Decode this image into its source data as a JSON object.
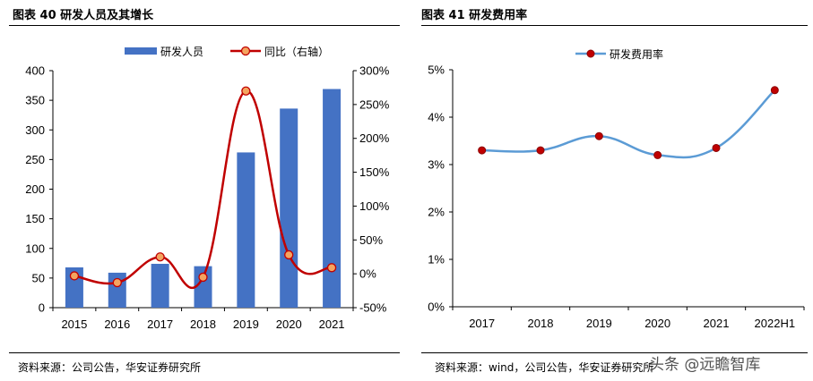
{
  "chart_data": [
    {
      "type": "bar",
      "title": "图表 40 研发人员及其增长",
      "categories": [
        "2015",
        "2016",
        "2017",
        "2018",
        "2019",
        "2020",
        "2021"
      ],
      "series": [
        {
          "name": "研发人员",
          "type": "bar",
          "axis": "left",
          "color": "#4472C4",
          "values": [
            68,
            59,
            74,
            70,
            262,
            336,
            369
          ]
        },
        {
          "name": "同比（右轴）",
          "type": "line",
          "axis": "right",
          "color": "#C00000",
          "marker_fill": "#F4A460",
          "values": [
            -3,
            -13,
            25,
            -5,
            270,
            28,
            9
          ]
        }
      ],
      "yleft": {
        "min": 0,
        "max": 400,
        "step": 50,
        "ticks": [
          "0",
          "50",
          "100",
          "150",
          "200",
          "250",
          "300",
          "350",
          "400"
        ]
      },
      "yright": {
        "min": -50,
        "max": 300,
        "step": 50,
        "ticks": [
          "-50%",
          "0%",
          "50%",
          "100%",
          "150%",
          "200%",
          "250%",
          "300%"
        ]
      },
      "legend_position": "top",
      "source": "资料来源：公司公告，华安证券研究所"
    },
    {
      "type": "line",
      "title": "图表 41 研发费用率",
      "categories": [
        "2017",
        "2018",
        "2019",
        "2020",
        "2021",
        "2022H1"
      ],
      "series": [
        {
          "name": "研发费用率",
          "color": "#5B9BD5",
          "marker_fill": "#C00000",
          "values": [
            3.3,
            3.3,
            3.6,
            3.2,
            3.35,
            4.57
          ]
        }
      ],
      "y": {
        "min": 0,
        "max": 5,
        "step": 1,
        "ticks": [
          "0%",
          "1%",
          "2%",
          "3%",
          "4%",
          "5%"
        ]
      },
      "legend_position": "top",
      "source": "资料来源：wind，公司公告，华安证券研究所"
    }
  ],
  "watermark": "头条 @远瞻智库"
}
